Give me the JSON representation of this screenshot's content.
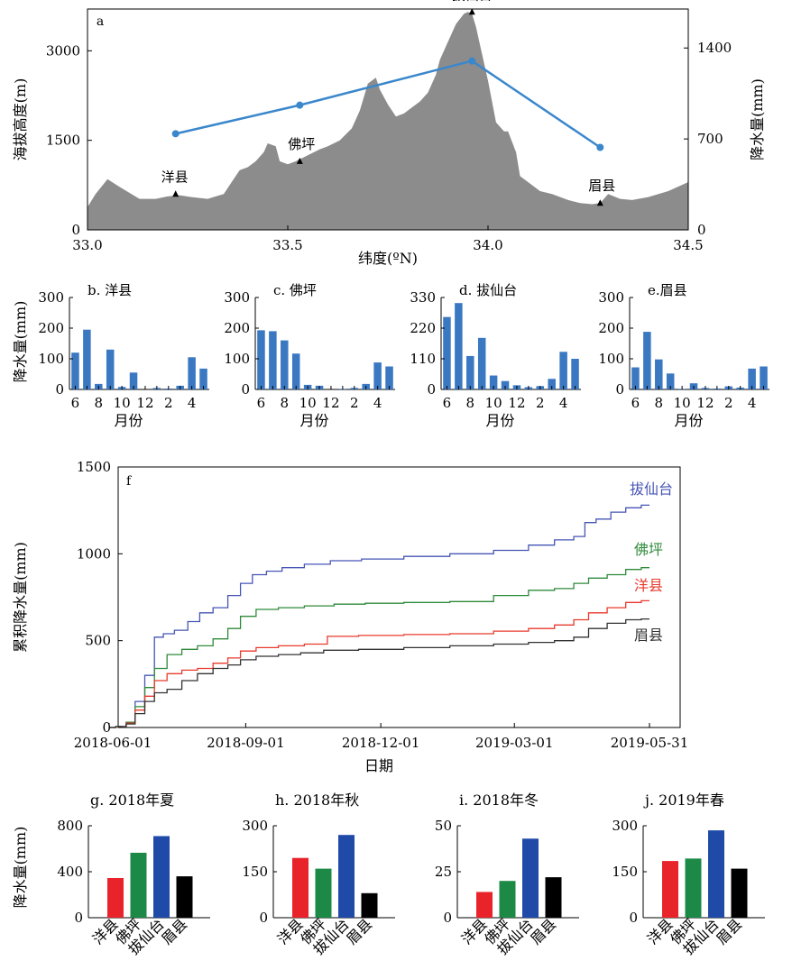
{
  "colors": {
    "terrain": "#8c8c8c",
    "transect": "#3a87cc",
    "bar_blue": "#3a78c2",
    "baxiantai": "#4655b5",
    "foping": "#2f8a3a",
    "yangxian": "#e83a2c",
    "meixian": "#333333",
    "g_yangxian": "#e8242a",
    "g_foping": "#1c8a46",
    "g_baxiantai": "#1f4aa8",
    "g_meixian": "#000000"
  },
  "panel_a": {
    "label": "a",
    "xlabel": "纬度(ºN)",
    "ylabel_left": "海拔高度(m)",
    "ylabel_right": "降水量(mm)",
    "x_ticks": [
      "33.0",
      "33.5",
      "34.0",
      "34.5"
    ],
    "y_left_ticks": [
      "0",
      "1500",
      "3000"
    ],
    "y_right_ticks": [
      "0",
      "700",
      "1400"
    ],
    "sites": [
      {
        "name": "洋县",
        "lat": 33.22,
        "elev": 600
      },
      {
        "name": "佛坪",
        "lat": 33.53,
        "elev": 1150
      },
      {
        "name": "拔仙台",
        "lat": 33.96,
        "elev": 3650
      },
      {
        "name": "眉县",
        "lat": 34.28,
        "elev": 450
      }
    ]
  },
  "chart_data": [
    {
      "type": "area",
      "panel": "a",
      "xlim": [
        33.0,
        34.5
      ],
      "ylim": [
        0,
        3700
      ],
      "x": [
        33.0,
        33.02,
        33.05,
        33.08,
        33.1,
        33.13,
        33.17,
        33.2,
        33.23,
        33.26,
        33.3,
        33.32,
        33.34,
        33.36,
        33.38,
        33.4,
        33.42,
        33.44,
        33.45,
        33.47,
        33.48,
        33.5,
        33.52,
        33.55,
        33.58,
        33.6,
        33.63,
        33.66,
        33.68,
        33.7,
        33.72,
        33.73,
        33.75,
        33.77,
        33.79,
        33.81,
        33.83,
        33.85,
        33.87,
        33.88,
        33.9,
        33.92,
        33.94,
        33.95,
        33.96,
        33.97,
        33.98,
        34.0,
        34.02,
        34.04,
        34.05,
        34.07,
        34.08,
        34.1,
        34.13,
        34.16,
        34.2,
        34.23,
        34.26,
        34.28,
        34.3,
        34.33,
        34.36,
        34.4,
        34.45,
        34.5
      ],
      "elevation": [
        380,
        600,
        850,
        720,
        640,
        520,
        520,
        560,
        580,
        550,
        520,
        560,
        600,
        800,
        1000,
        1050,
        1150,
        1300,
        1450,
        1400,
        1150,
        1100,
        1150,
        1250,
        1350,
        1400,
        1500,
        1700,
        2000,
        2450,
        2550,
        2350,
        2100,
        1900,
        1950,
        2050,
        2150,
        2300,
        2600,
        2850,
        3150,
        3450,
        3620,
        3650,
        3620,
        3400,
        3100,
        2500,
        1800,
        1650,
        1650,
        1300,
        900,
        800,
        650,
        600,
        500,
        450,
        430,
        450,
        600,
        520,
        500,
        550,
        650,
        800
      ]
    },
    {
      "type": "line",
      "panel": "a",
      "series": [
        {
          "name": "",
          "x": [
            33.22,
            33.53,
            33.96,
            34.28
          ],
          "values": [
            740,
            960,
            1300,
            635
          ]
        }
      ],
      "ylim": [
        0,
        1700
      ],
      "ylabel": "降水量(mm)"
    },
    {
      "type": "bar",
      "panel": "b",
      "title": "b. 洋县",
      "categories": [
        6,
        7,
        8,
        9,
        10,
        11,
        12,
        1,
        2,
        3,
        4,
        5
      ],
      "values": [
        120,
        195,
        18,
        130,
        8,
        55,
        0,
        5,
        3,
        12,
        105,
        68
      ],
      "ylim": [
        0,
        300
      ],
      "yticks": [
        "0",
        "100",
        "200",
        "300"
      ],
      "xticks": [
        "6",
        "8",
        "10",
        "12",
        "2",
        "4"
      ],
      "xlabel": "月份",
      "ylabel": "降水量(mm)"
    },
    {
      "type": "bar",
      "panel": "c",
      "title": "c. 佛坪",
      "categories": [
        6,
        7,
        8,
        9,
        10,
        11,
        12,
        1,
        2,
        3,
        4,
        5
      ],
      "values": [
        193,
        190,
        160,
        117,
        15,
        12,
        0,
        2,
        5,
        18,
        88,
        75
      ],
      "ylim": [
        0,
        300
      ],
      "yticks": [
        "0",
        "100",
        "200",
        "300"
      ],
      "xticks": [
        "6",
        "8",
        "10",
        "12",
        "2",
        "4"
      ],
      "xlabel": "月份"
    },
    {
      "type": "bar",
      "panel": "d",
      "title": "d. 拔仙台",
      "categories": [
        6,
        7,
        8,
        9,
        10,
        11,
        12,
        1,
        2,
        3,
        4,
        5
      ],
      "values": [
        260,
        310,
        120,
        185,
        50,
        30,
        15,
        8,
        12,
        38,
        135,
        110
      ],
      "ylim": [
        0,
        330
      ],
      "yticks": [
        "0",
        "110",
        "220",
        "330"
      ],
      "xticks": [
        "6",
        "8",
        "10",
        "12",
        "2",
        "4"
      ],
      "xlabel": "月份"
    },
    {
      "type": "bar",
      "panel": "e",
      "title": "e.眉县",
      "categories": [
        6,
        7,
        8,
        9,
        10,
        11,
        12,
        1,
        2,
        3,
        4,
        5
      ],
      "values": [
        72,
        188,
        98,
        52,
        2,
        20,
        5,
        3,
        10,
        6,
        68,
        75
      ],
      "ylim": [
        0,
        300
      ],
      "yticks": [
        "0",
        "100",
        "200",
        "300"
      ],
      "xticks": [
        "6",
        "8",
        "10",
        "12",
        "2",
        "4"
      ],
      "xlabel": "月份"
    },
    {
      "type": "line",
      "panel": "f",
      "label": "f",
      "xlabel": "日期",
      "ylabel": "累积降水量(mm)",
      "ylim": [
        0,
        1500
      ],
      "yticks": [
        "0",
        "500",
        "1000",
        "1500"
      ],
      "xticks": [
        "2018-06-01",
        "2018-09-01",
        "2018-12-01",
        "2019-03-01",
        "2019-05-31"
      ],
      "series": [
        {
          "name": "拔仙台",
          "x": [
            "2018-06-01",
            "2018-06-10",
            "2018-06-15",
            "2018-06-22",
            "2018-06-28",
            "2018-07-05",
            "2018-07-10",
            "2018-07-20",
            "2018-07-28",
            "2018-08-05",
            "2018-08-15",
            "2018-08-25",
            "2018-09-01",
            "2018-09-10",
            "2018-09-20",
            "2018-10-01",
            "2018-10-20",
            "2018-11-05",
            "2018-12-01",
            "2019-01-01",
            "2019-02-01",
            "2019-03-01",
            "2019-03-20",
            "2019-04-05",
            "2019-04-15",
            "2019-04-20",
            "2019-04-30",
            "2019-05-10",
            "2019-05-20",
            "2019-05-31"
          ],
          "values": [
            0,
            5,
            30,
            150,
            300,
            520,
            540,
            560,
            610,
            660,
            690,
            760,
            830,
            880,
            900,
            920,
            940,
            960,
            970,
            985,
            1000,
            1020,
            1050,
            1080,
            1100,
            1180,
            1200,
            1240,
            1265,
            1280
          ]
        },
        {
          "name": "佛坪",
          "x": [
            "2018-06-01",
            "2018-06-10",
            "2018-06-15",
            "2018-06-22",
            "2018-06-28",
            "2018-07-05",
            "2018-07-15",
            "2018-07-25",
            "2018-08-05",
            "2018-08-15",
            "2018-08-25",
            "2018-09-01",
            "2018-09-15",
            "2018-10-01",
            "2018-10-20",
            "2018-11-10",
            "2018-12-01",
            "2019-01-01",
            "2019-02-01",
            "2019-03-01",
            "2019-03-20",
            "2019-04-05",
            "2019-04-15",
            "2019-04-25",
            "2019-05-10",
            "2019-05-20",
            "2019-05-31"
          ],
          "values": [
            0,
            5,
            30,
            120,
            230,
            340,
            420,
            450,
            470,
            510,
            570,
            640,
            680,
            690,
            700,
            710,
            715,
            720,
            725,
            760,
            790,
            800,
            830,
            860,
            880,
            910,
            920
          ]
        },
        {
          "name": "洋县",
          "x": [
            "2018-06-01",
            "2018-06-10",
            "2018-06-15",
            "2018-06-22",
            "2018-06-28",
            "2018-07-05",
            "2018-07-15",
            "2018-07-25",
            "2018-08-05",
            "2018-08-15",
            "2018-08-25",
            "2018-09-01",
            "2018-09-15",
            "2018-10-01",
            "2018-10-20",
            "2018-11-01",
            "2018-12-01",
            "2019-01-01",
            "2019-02-01",
            "2019-03-01",
            "2019-03-20",
            "2019-04-05",
            "2019-04-15",
            "2019-04-25",
            "2019-05-10",
            "2019-05-20",
            "2019-05-31"
          ],
          "values": [
            0,
            5,
            25,
            100,
            180,
            270,
            310,
            330,
            340,
            370,
            400,
            440,
            460,
            470,
            480,
            525,
            530,
            535,
            540,
            555,
            570,
            590,
            620,
            660,
            690,
            720,
            730
          ]
        },
        {
          "name": "眉县",
          "x": [
            "2018-06-01",
            "2018-06-10",
            "2018-06-15",
            "2018-06-22",
            "2018-06-28",
            "2018-07-05",
            "2018-07-15",
            "2018-07-25",
            "2018-08-05",
            "2018-08-15",
            "2018-08-25",
            "2018-09-01",
            "2018-09-15",
            "2018-10-01",
            "2018-10-15",
            "2018-11-01",
            "2018-12-01",
            "2019-01-01",
            "2019-02-01",
            "2019-03-01",
            "2019-03-20",
            "2019-04-05",
            "2019-04-15",
            "2019-04-25",
            "2019-05-10",
            "2019-05-20",
            "2019-05-31"
          ],
          "values": [
            0,
            5,
            20,
            80,
            150,
            200,
            220,
            270,
            310,
            340,
            360,
            390,
            410,
            420,
            430,
            445,
            450,
            460,
            470,
            480,
            490,
            500,
            520,
            570,
            600,
            620,
            625
          ]
        }
      ]
    },
    {
      "type": "bar",
      "panel": "g",
      "title": "g. 2018年夏",
      "categories": [
        "洋县",
        "佛坪",
        "拔仙台",
        "眉县"
      ],
      "values": [
        345,
        565,
        710,
        360
      ],
      "ylim": [
        0,
        800
      ],
      "yticks": [
        "0",
        "400",
        "800"
      ],
      "ylabel": "降水量(mm)"
    },
    {
      "type": "bar",
      "panel": "h",
      "title": "h. 2018年秋",
      "categories": [
        "洋县",
        "佛坪",
        "拔仙台",
        "眉县"
      ],
      "values": [
        195,
        160,
        270,
        80
      ],
      "ylim": [
        0,
        300
      ],
      "yticks": [
        "0",
        "150",
        "300"
      ]
    },
    {
      "type": "bar",
      "panel": "i",
      "title": "i. 2018年冬",
      "categories": [
        "洋县",
        "佛坪",
        "拔仙台",
        "眉县"
      ],
      "values": [
        14,
        20,
        43,
        22
      ],
      "ylim": [
        0,
        50
      ],
      "yticks": [
        "0",
        "25",
        "50"
      ]
    },
    {
      "type": "bar",
      "panel": "j",
      "title": "j. 2019年春",
      "categories": [
        "洋县",
        "佛坪",
        "拔仙台",
        "眉县"
      ],
      "values": [
        185,
        193,
        285,
        160
      ],
      "ylim": [
        0,
        300
      ],
      "yticks": [
        "0",
        "150",
        "300"
      ]
    }
  ]
}
